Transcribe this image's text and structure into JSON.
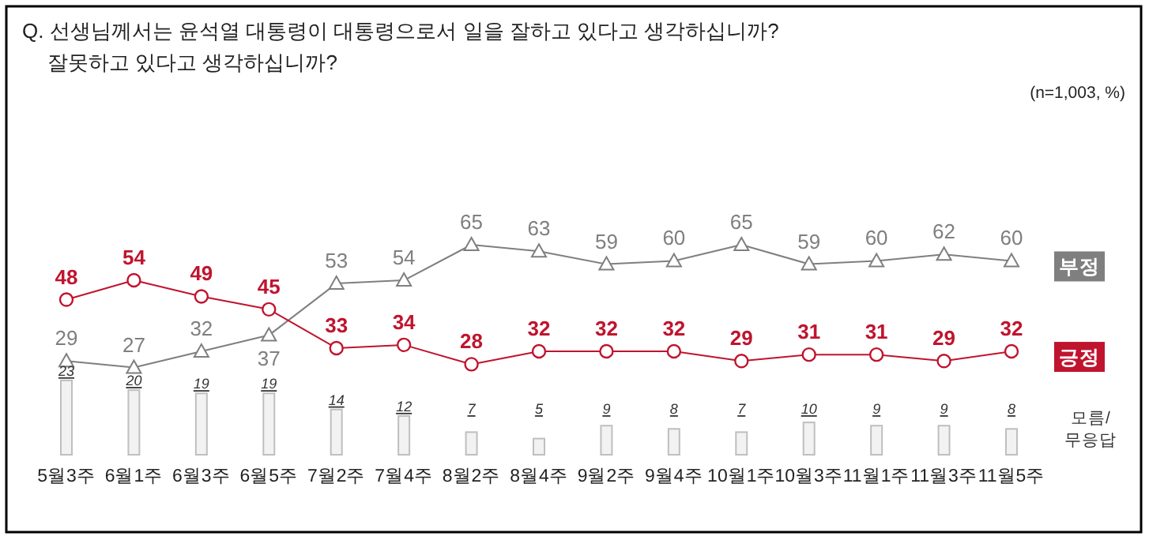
{
  "chart_data": {
    "type": "line",
    "title": "Q. 선생님께서는 윤석열 대통령이 대통령으로서 일을 잘하고 있다고 생각하십니까?\n잘못하고 있다고 생각하십니까?",
    "annotations": [
      "(n=1,003,  %)"
    ],
    "categories": [
      "5월3주",
      "6월1주",
      "6월3주",
      "6월5주",
      "7월2주",
      "7월4주",
      "8월2주",
      "8월4주",
      "9월2주",
      "9월4주",
      "10월1주",
      "10월3주",
      "11월1주",
      "11월3주",
      "11월5주"
    ],
    "tick_labels": "x",
    "data_labels": true,
    "series": [
      {
        "name": "부정",
        "color": "#7f7f7f",
        "marker": "triangle",
        "values": [
          29,
          27,
          32,
          37,
          53,
          54,
          65,
          63,
          59,
          60,
          65,
          59,
          60,
          62,
          60
        ]
      },
      {
        "name": "긍정",
        "color": "#c0142e",
        "marker": "circle",
        "values": [
          48,
          54,
          49,
          45,
          33,
          34,
          28,
          32,
          32,
          32,
          29,
          31,
          31,
          29,
          32
        ]
      },
      {
        "name": "모름/무응답",
        "type": "bar",
        "color": "#f2f2f2",
        "values": [
          23,
          20,
          19,
          19,
          14,
          12,
          7,
          5,
          9,
          8,
          7,
          10,
          9,
          9,
          8
        ]
      }
    ]
  }
}
